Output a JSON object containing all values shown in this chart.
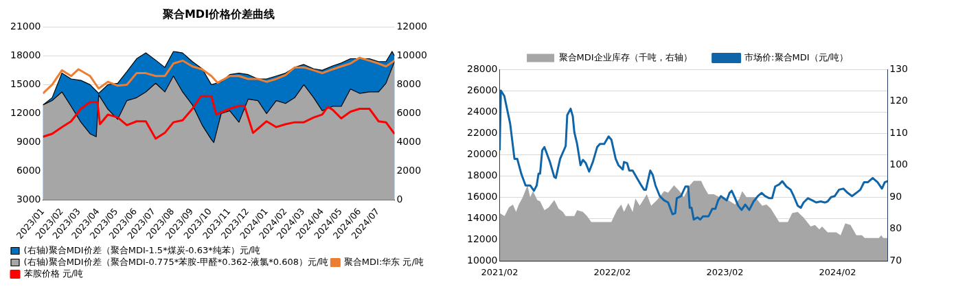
{
  "chart_data": [
    {
      "type": "area",
      "title": "聚合MDI价格价差曲线",
      "grid": "y",
      "legend": "bottom left",
      "xlim": [
        "2023-01-01",
        "2024-07-28"
      ],
      "xticks": [
        {
          "value": "2023-01-01",
          "label": "2023/01"
        },
        {
          "value": "2023-02-01",
          "label": "2023/02"
        },
        {
          "value": "2023-03-01",
          "label": "2023/03"
        },
        {
          "value": "2023-04-01",
          "label": "2023/04"
        },
        {
          "value": "2023-05-01",
          "label": "2023/05"
        },
        {
          "value": "2023-06-01",
          "label": "2023/06"
        },
        {
          "value": "2023-07-01",
          "label": "2023/07"
        },
        {
          "value": "2023-08-01",
          "label": "2023/08"
        },
        {
          "value": "2023-09-01",
          "label": "2023/09"
        },
        {
          "value": "2023-10-01",
          "label": "2023/10"
        },
        {
          "value": "2023-11-01",
          "label": "2023/11"
        },
        {
          "value": "2023-12-01",
          "label": "2023/12"
        },
        {
          "value": "2024-01-01",
          "label": "2024/01"
        },
        {
          "value": "2024-02-01",
          "label": "2024/02"
        },
        {
          "value": "2024-03-01",
          "label": "2024/03"
        },
        {
          "value": "2024-04-01",
          "label": "2024/04"
        },
        {
          "value": "2024-05-01",
          "label": "2024/05"
        },
        {
          "value": "2024-06-01",
          "label": "2024/06"
        },
        {
          "value": "2024-07-01",
          "label": "2024/07"
        }
      ],
      "ylim": [
        3000,
        21000
      ],
      "yticks": [
        3000,
        6000,
        9000,
        12000,
        15000,
        18000,
        21000
      ],
      "y2lim": [
        0,
        12000
      ],
      "y2ticks": [
        0,
        2000,
        4000,
        6000,
        8000,
        10000,
        12000
      ],
      "series": [
        {
          "name": "(右轴)聚合MDI价差（聚合MDI-1.5*煤炭-0.63*纯苯）元/吨",
          "type": "area",
          "axis": "y2",
          "color": "#0070c0",
          "x": [
            "2023-01-01",
            "2023-01-16",
            "2023-02-01",
            "2023-02-16",
            "2023-03-04",
            "2023-03-19",
            "2023-04-02",
            "2023-04-17",
            "2023-05-03",
            "2023-05-18",
            "2023-06-03",
            "2023-06-18",
            "2023-07-04",
            "2023-07-19",
            "2023-08-02",
            "2023-08-17",
            "2023-09-02",
            "2023-09-18",
            "2023-10-03",
            "2023-10-19",
            "2023-11-02",
            "2023-11-17",
            "2023-12-02",
            "2023-12-18",
            "2024-01-01",
            "2024-01-17",
            "2024-02-01",
            "2024-02-16",
            "2024-03-02",
            "2024-03-18",
            "2024-04-01",
            "2024-04-18",
            "2024-05-02",
            "2024-05-17",
            "2024-06-01",
            "2024-06-17",
            "2024-07-02",
            "2024-07-14",
            "2024-07-24",
            "2024-07-28"
          ],
          "values": [
            6600,
            7100,
            8800,
            8400,
            8300,
            8000,
            7400,
            8000,
            8100,
            8900,
            9800,
            10200,
            9700,
            9200,
            10300,
            10200,
            9600,
            9100,
            8000,
            8200,
            8700,
            8800,
            8700,
            8400,
            8400,
            8600,
            8800,
            9200,
            9400,
            9100,
            9000,
            9300,
            9500,
            9800,
            9800,
            9800,
            9600,
            9600,
            10300,
            10000
          ]
        },
        {
          "name": "(右轴)聚合MDI价差（聚合MDI-0.775*苯胺-甲醛*0.362-液氯*0.608）元/吨",
          "type": "area",
          "axis": "y2",
          "color": "#a6a6a6",
          "x": [
            "2023-01-01",
            "2023-01-16",
            "2023-02-01",
            "2023-02-16",
            "2023-03-04",
            "2023-03-19",
            "2023-03-29",
            "2023-04-02",
            "2023-04-17",
            "2023-05-03",
            "2023-05-18",
            "2023-06-03",
            "2023-06-18",
            "2023-07-04",
            "2023-07-19",
            "2023-08-02",
            "2023-08-17",
            "2023-09-02",
            "2023-09-18",
            "2023-10-03",
            "2023-10-07",
            "2023-10-19",
            "2023-11-02",
            "2023-11-17",
            "2023-12-02",
            "2023-12-18",
            "2024-01-01",
            "2024-01-17",
            "2024-02-01",
            "2024-02-16",
            "2024-03-02",
            "2024-03-18",
            "2024-04-01",
            "2024-04-18",
            "2024-05-02",
            "2024-05-17",
            "2024-06-01",
            "2024-06-17",
            "2024-07-02",
            "2024-07-14",
            "2024-07-28"
          ],
          "values": [
            6600,
            6900,
            7500,
            6500,
            5400,
            4600,
            4400,
            7300,
            6300,
            5600,
            6900,
            7100,
            7500,
            8100,
            7500,
            8600,
            7500,
            6600,
            5200,
            4200,
            4000,
            6000,
            6200,
            5400,
            7000,
            6900,
            6000,
            6900,
            6700,
            7100,
            8000,
            7100,
            6200,
            6500,
            6500,
            7700,
            7400,
            7500,
            7500,
            8100,
            9600
          ]
        },
        {
          "name": "聚合MDI:华东 元/吨",
          "type": "line",
          "color": "#ed7d31",
          "x": [
            "2023-01-01",
            "2023-01-16",
            "2023-02-01",
            "2023-02-16",
            "2023-02-28",
            "2023-03-19",
            "2023-04-02",
            "2023-04-17",
            "2023-05-03",
            "2023-05-18",
            "2023-06-03",
            "2023-06-18",
            "2023-07-04",
            "2023-07-19",
            "2023-08-02",
            "2023-08-17",
            "2023-09-02",
            "2023-09-18",
            "2023-10-03",
            "2023-10-13",
            "2023-11-02",
            "2023-11-17",
            "2023-12-02",
            "2023-12-18",
            "2024-01-01",
            "2024-01-17",
            "2024-02-01",
            "2024-02-16",
            "2024-03-02",
            "2024-03-18",
            "2024-04-01",
            "2024-04-18",
            "2024-05-02",
            "2024-05-17",
            "2024-06-01",
            "2024-06-17",
            "2024-07-02",
            "2024-07-14",
            "2024-07-28"
          ],
          "values": [
            14100,
            15000,
            16500,
            15900,
            16600,
            15900,
            14600,
            15300,
            14900,
            15000,
            16200,
            16200,
            15900,
            15900,
            17200,
            17500,
            16900,
            16600,
            15900,
            15200,
            15900,
            15900,
            15600,
            15600,
            15300,
            15600,
            16000,
            16800,
            16800,
            16500,
            16200,
            16600,
            16900,
            17200,
            17800,
            17500,
            17200,
            16900,
            17500
          ]
        },
        {
          "name": "苯胺价格 元/吨",
          "type": "line",
          "color": "#ff0000",
          "x": [
            "2023-01-01",
            "2023-01-16",
            "2023-02-01",
            "2023-02-16",
            "2023-03-04",
            "2023-03-19",
            "2023-03-31",
            "2023-04-04",
            "2023-04-17",
            "2023-05-03",
            "2023-05-18",
            "2023-06-03",
            "2023-06-18",
            "2023-07-04",
            "2023-07-19",
            "2023-08-02",
            "2023-08-17",
            "2023-09-02",
            "2023-09-16",
            "2023-10-03",
            "2023-10-11",
            "2023-11-02",
            "2023-11-17",
            "2023-11-26",
            "2023-12-10",
            "2024-01-01",
            "2024-01-17",
            "2024-02-01",
            "2024-02-16",
            "2024-03-02",
            "2024-03-18",
            "2024-04-01",
            "2024-04-10",
            "2024-04-18",
            "2024-05-02",
            "2024-05-17",
            "2024-06-01",
            "2024-06-17",
            "2024-07-02",
            "2024-07-14",
            "2024-07-28"
          ],
          "values": [
            9600,
            9900,
            10600,
            11200,
            12500,
            13200,
            13200,
            10900,
            11900,
            11600,
            10800,
            11200,
            11200,
            9400,
            10000,
            11100,
            11300,
            12500,
            13800,
            13800,
            11900,
            12500,
            12800,
            12800,
            10000,
            11200,
            10600,
            10900,
            11100,
            11100,
            11600,
            11900,
            12700,
            12400,
            11500,
            12200,
            12500,
            12500,
            11200,
            11100,
            9900
          ]
        }
      ]
    },
    {
      "type": "area",
      "grid": "y",
      "legend": "top",
      "xlim": [
        "2021-02-01",
        "2024-07-12"
      ],
      "xticks": [
        {
          "value": "2021-02-01",
          "label": "2021/02"
        },
        {
          "value": "2022-02-01",
          "label": "2022/02"
        },
        {
          "value": "2023-02-01",
          "label": "2023/02"
        },
        {
          "value": "2024-02-01",
          "label": "2024/02"
        }
      ],
      "ylim": [
        10000,
        28000
      ],
      "yticks": [
        10000,
        12000,
        14000,
        16000,
        18000,
        20000,
        22000,
        24000,
        26000,
        28000
      ],
      "y2lim": [
        70,
        130
      ],
      "y2ticks": [
        70,
        80,
        90,
        100,
        110,
        120,
        130
      ],
      "series": [
        {
          "name": "聚合MDI企业库存（千吨，右轴）",
          "type": "area",
          "axis": "y2",
          "color": "#a6a6a6",
          "x": [
            "2021-02-01",
            "2021-02-17",
            "2021-03-03",
            "2021-03-16",
            "2021-03-26",
            "2021-04-04",
            "2021-04-17",
            "2021-05-02",
            "2021-05-11",
            "2021-05-20",
            "2021-06-03",
            "2021-06-12",
            "2021-06-26",
            "2021-07-10",
            "2021-07-28",
            "2021-08-11",
            "2021-08-25",
            "2021-09-03",
            "2021-10-01",
            "2021-10-10",
            "2021-10-29",
            "2021-11-11",
            "2021-11-25",
            "2022-01-10",
            "2022-01-29",
            "2022-02-16",
            "2022-03-02",
            "2022-03-11",
            "2022-03-25",
            "2022-04-08",
            "2022-04-17",
            "2022-05-01",
            "2022-05-24",
            "2022-06-07",
            "2022-06-26",
            "2022-07-19",
            "2022-08-01",
            "2022-08-20",
            "2022-09-07",
            "2022-09-21",
            "2022-10-10",
            "2022-10-23",
            "2022-11-16",
            "2022-11-25",
            "2022-12-09",
            "2022-12-27",
            "2023-01-15",
            "2023-02-11",
            "2023-03-06",
            "2023-03-20",
            "2023-03-29",
            "2023-04-12",
            "2023-05-10",
            "2023-06-02",
            "2023-06-16",
            "2023-06-30",
            "2023-07-27",
            "2023-08-24",
            "2023-09-07",
            "2023-09-25",
            "2023-10-14",
            "2023-11-06",
            "2023-11-20",
            "2023-12-04",
            "2023-12-13",
            "2023-12-31",
            "2024-01-28",
            "2024-02-11",
            "2024-02-26",
            "2024-03-14",
            "2024-04-02",
            "2024-04-20",
            "2024-04-29",
            "2024-06-14",
            "2024-06-22",
            "2024-06-28",
            "2024-07-12"
          ],
          "values": [
            85,
            84.1,
            86.8,
            87.7,
            85.4,
            87.7,
            90,
            93.7,
            90,
            91.9,
            89.1,
            88.7,
            85.9,
            86.8,
            89.1,
            86.4,
            85.4,
            84.1,
            84.1,
            85.9,
            85.4,
            84.1,
            82.2,
            82.2,
            82.2,
            85.9,
            87.7,
            85.4,
            88.2,
            85.4,
            89.6,
            87.3,
            90.9,
            87.3,
            89.1,
            91.9,
            91.4,
            93.7,
            91.9,
            90,
            93.7,
            95.1,
            95.1,
            93.2,
            90.9,
            90.9,
            90,
            89.1,
            87.7,
            89.6,
            91.9,
            90,
            90,
            87.3,
            87.7,
            86.4,
            82.2,
            82.2,
            85,
            85.4,
            83.6,
            80.8,
            81.3,
            79.9,
            80.8,
            79,
            79,
            78.1,
            81.8,
            81.3,
            78.1,
            78.1,
            77.2,
            77.2,
            78.1,
            77.2,
            77.2
          ]
        },
        {
          "name": "市场价:聚合MDI（元/吨）",
          "type": "line",
          "color": "#0f65a8",
          "x": [
            "2021-02-01",
            "2021-02-05",
            "2021-02-16",
            "2021-03-07",
            "2021-03-21",
            "2021-03-30",
            "2021-04-12",
            "2021-04-26",
            "2021-05-11",
            "2021-05-23",
            "2021-06-01",
            "2021-06-07",
            "2021-06-12",
            "2021-06-19",
            "2021-06-26",
            "2021-07-14",
            "2021-07-28",
            "2021-08-02",
            "2021-08-16",
            "2021-09-03",
            "2021-09-08",
            "2021-09-19",
            "2021-09-26",
            "2021-10-01",
            "2021-10-10",
            "2021-10-21",
            "2021-10-29",
            "2021-11-07",
            "2021-11-18",
            "2021-11-30",
            "2021-12-14",
            "2021-12-23",
            "2022-01-06",
            "2022-01-20",
            "2022-01-29",
            "2022-02-12",
            "2022-02-21",
            "2022-03-07",
            "2022-03-11",
            "2022-03-21",
            "2022-03-28",
            "2022-04-08",
            "2022-04-24",
            "2022-05-06",
            "2022-05-15",
            "2022-05-21",
            "2022-06-04",
            "2022-06-12",
            "2022-06-21",
            "2022-07-05",
            "2022-07-19",
            "2022-08-01",
            "2022-08-15",
            "2022-08-24",
            "2022-08-29",
            "2022-09-12",
            "2022-09-26",
            "2022-10-05",
            "2022-10-10",
            "2022-10-16",
            "2022-10-23",
            "2022-11-04",
            "2022-11-13",
            "2022-11-22",
            "2022-12-10",
            "2022-12-22",
            "2023-01-01",
            "2023-01-10",
            "2023-01-19",
            "2023-01-28",
            "2023-02-07",
            "2023-02-16",
            "2023-02-23",
            "2023-03-06",
            "2023-03-16",
            "2023-03-27",
            "2023-04-08",
            "2023-04-21",
            "2023-05-05",
            "2023-05-19",
            "2023-05-31",
            "2023-06-11",
            "2023-06-25",
            "2023-07-04",
            "2023-07-14",
            "2023-07-27",
            "2023-08-06",
            "2023-08-19",
            "2023-09-02",
            "2023-09-12",
            "2023-09-25",
            "2023-10-05",
            "2023-10-14",
            "2023-10-28",
            "2023-11-11",
            "2023-11-24",
            "2023-12-08",
            "2023-12-22",
            "2023-12-31",
            "2024-01-11",
            "2024-01-23",
            "2024-02-06",
            "2024-02-20",
            "2024-03-05",
            "2024-03-19",
            "2024-04-02",
            "2024-04-15",
            "2024-04-27",
            "2024-05-09",
            "2024-05-25",
            "2024-06-10",
            "2024-06-24",
            "2024-07-03",
            "2024-07-12"
          ],
          "values": [
            20400,
            26000,
            25500,
            22900,
            19600,
            19600,
            18200,
            17100,
            17100,
            16600,
            17100,
            18200,
            18200,
            20400,
            20700,
            19300,
            17900,
            17800,
            19600,
            20800,
            23700,
            24300,
            23600,
            22100,
            21000,
            19000,
            19500,
            19200,
            18400,
            19300,
            20700,
            21000,
            21000,
            21700,
            21400,
            19600,
            19000,
            18600,
            19300,
            19200,
            18500,
            18500,
            17700,
            17100,
            16700,
            16700,
            18500,
            18100,
            17100,
            16100,
            15700,
            15500,
            14400,
            14500,
            15900,
            16100,
            17000,
            17000,
            15000,
            15000,
            13900,
            14100,
            13900,
            14200,
            14200,
            14900,
            14900,
            15700,
            16100,
            15900,
            15700,
            16400,
            16600,
            15900,
            15200,
            14800,
            15300,
            14800,
            15600,
            16100,
            16400,
            16100,
            15900,
            15900,
            17000,
            17200,
            17500,
            17000,
            16700,
            16100,
            15200,
            15000,
            15500,
            15900,
            15700,
            15500,
            15600,
            15500,
            15600,
            16000,
            16100,
            16700,
            16800,
            16400,
            16100,
            16400,
            16700,
            17400,
            17400,
            17800,
            17400,
            16800,
            17400,
            17500
          ]
        }
      ]
    }
  ]
}
